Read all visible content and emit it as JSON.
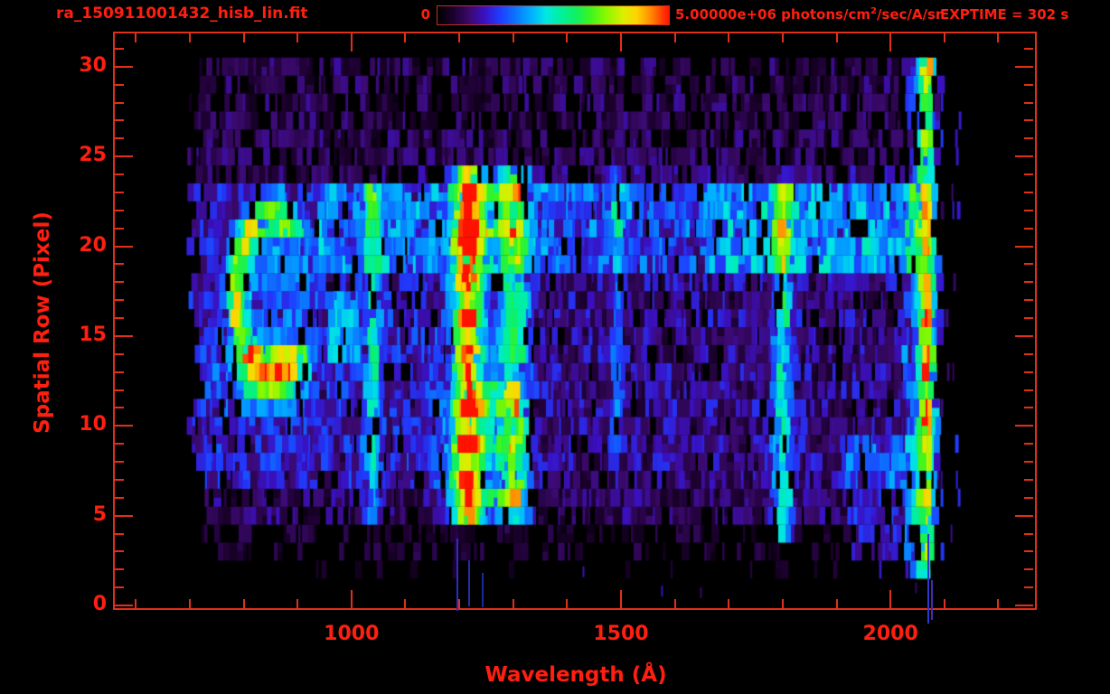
{
  "header": {
    "title": "ra_150911001432_hisb_lin.fit",
    "colorbar_min": "0",
    "colorbar_max_main": "5.00000e+06 photons/cm",
    "colorbar_max_sup": "2",
    "colorbar_max_rest": "/sec/A/sr",
    "exptime": "EXPTIME = 302 s"
  },
  "colors": {
    "background": "#000000",
    "text_red": "#ff1f10",
    "frame_red": "#e1301a"
  },
  "chart_data": {
    "type": "heatmap",
    "title": "ra_150911001432_hisb_lin.fit",
    "xlabel": "Wavelength (Å)",
    "ylabel": "Spatial Row (Pixel)",
    "x_ticks": [
      1000,
      1500,
      2000
    ],
    "x_minor_step": 100,
    "x_minor_range": [
      600,
      2200
    ],
    "y_ticks": [
      0,
      5,
      10,
      15,
      20,
      25,
      30
    ],
    "y_minor_step": 1,
    "y_minor_range": [
      0,
      31
    ],
    "x_range": [
      561,
      2268
    ],
    "y_range": [
      -0.15,
      31.85
    ],
    "intensity_scale": {
      "min": 0,
      "max": 5000000,
      "units": "photons/cm^2/sec/A/sr"
    },
    "exposure_s": 302,
    "data_extent": {
      "wavelength": [
        695,
        2090
      ],
      "rows": [
        2,
        30
      ]
    },
    "colormap_stops": [
      [
        0.0,
        "#000000"
      ],
      [
        0.07,
        "#1d0130"
      ],
      [
        0.14,
        "#3b0a6e"
      ],
      [
        0.2,
        "#3a10c0"
      ],
      [
        0.27,
        "#1f3cff"
      ],
      [
        0.34,
        "#0b77ff"
      ],
      [
        0.41,
        "#00b4ff"
      ],
      [
        0.47,
        "#00e8e0"
      ],
      [
        0.53,
        "#00f0a0"
      ],
      [
        0.6,
        "#10f060"
      ],
      [
        0.66,
        "#3cf51e"
      ],
      [
        0.73,
        "#8cf800"
      ],
      [
        0.8,
        "#d8f000"
      ],
      [
        0.86,
        "#ffd400"
      ],
      [
        0.92,
        "#ff8c00"
      ],
      [
        0.96,
        "#ff4e00"
      ],
      [
        1.0,
        "#ff1200"
      ]
    ],
    "emission_lines": [
      {
        "id": "l1040",
        "wavelength": 1040,
        "sigma": 10,
        "amp": 0.3,
        "rows": [
          5,
          23
        ],
        "profile": "midbright",
        "label": "cyan line ~1040 A"
      },
      {
        "id": "lya",
        "wavelength": 1216,
        "sigma": 16,
        "amp": 0.85,
        "rows": [
          5,
          24
        ],
        "profile": "alternating",
        "label": "Lyman-alpha, orange-red core"
      },
      {
        "id": "lya_wing",
        "wavelength": 1218,
        "sigma": 34,
        "amp": 0.22,
        "rows": [
          5,
          24
        ],
        "profile": "uniform",
        "label": "Lyman-alpha wings"
      },
      {
        "id": "l1302",
        "wavelength": 1302,
        "sigma": 20,
        "amp": 0.42,
        "rows": [
          5,
          24
        ],
        "profile": "uniform",
        "label": "green line ~1300 A"
      },
      {
        "id": "l1493",
        "wavelength": 1493,
        "sigma": 8,
        "amp": 0.17,
        "rows": [
          9,
          24
        ],
        "profile": "uniform",
        "label": "faint line ~1490 A"
      },
      {
        "id": "l1800",
        "wavelength": 1800,
        "sigma": 13,
        "amp": 0.38,
        "rows": [
          4,
          23
        ],
        "profile": "topbright",
        "label": "green line ~1800 A"
      },
      {
        "id": "edge",
        "wavelength": 2067,
        "sigma": 10,
        "amp": 0.85,
        "rows": [
          2,
          30
        ],
        "profile": "edge",
        "label": "red detector-edge column ~2065 A"
      }
    ],
    "features": [
      {
        "type": "region",
        "rows": [
          19,
          23
        ],
        "wl": [
          940,
          2058
        ],
        "boost": 0.13,
        "label": "bright band rows 19-23"
      },
      {
        "type": "region",
        "rows": [
          19,
          23
        ],
        "wl": [
          1650,
          2052
        ],
        "boost": 0.09
      },
      {
        "type": "region",
        "rows": [
          7,
          23
        ],
        "wl": [
          695,
          1160
        ],
        "boost": 0.05
      },
      {
        "type": "region",
        "rows": [
          6,
          11
        ],
        "wl": [
          1160,
          1340
        ],
        "boost": 0.07
      },
      {
        "type": "region",
        "rows": [
          2,
          9
        ],
        "wl": [
          1920,
          2055
        ],
        "boost": 0.12
      },
      {
        "type": "region",
        "rows": [
          2,
          30
        ],
        "wl": [
          2026,
          2058
        ],
        "boost": 0.12
      },
      {
        "type": "region",
        "rows": [
          14,
          17
        ],
        "wl": [
          955,
          1015
        ],
        "boost": 0.18
      },
      {
        "type": "region",
        "rows": [
          24,
          24
        ],
        "wl": [
          940,
          2058
        ],
        "boost": 0.04
      },
      {
        "type": "ring",
        "cx": 852,
        "cy": 17.3,
        "rx": 80,
        "ry": 5.0,
        "width": 0.16,
        "amp": 0.5,
        "opening": "right",
        "label": "C-shaped airglow blob ~850 A rows 12-23"
      },
      {
        "type": "gauss2d",
        "cx": 845,
        "cy": 12.6,
        "sx": 55,
        "sy": 1.1,
        "amp": 0.38
      },
      {
        "type": "gauss2d",
        "cx": 852,
        "cy": 17.3,
        "sx": 55,
        "sy": 2.6,
        "amp": 0.14
      },
      {
        "type": "rows_region",
        "rows": [
          6,
          9,
          11,
          12,
          21,
          23
        ],
        "wl": [
          1216,
          1312
        ],
        "boost": 0.22,
        "label": "bridges between 1216 and 1300 lines"
      }
    ],
    "noise": {
      "base": {
        "2": 0.05,
        "3_4": 0.07,
        "5_6": 0.12,
        "7_23": 0.15,
        "24_30": 0.105
      },
      "gap": {
        "2": 0.85,
        "3_4": 0.55,
        "5_6": 0.16,
        "7_23": 0.1,
        "24_30": 0.3
      },
      "row_start_wl": {
        "2": 740,
        "3_4": 715,
        "5_6": 705,
        "7_23": 690,
        "24_30": 693
      },
      "row_end_wl": 2088
    },
    "overflow_marks": [
      {
        "wavelength": 1196,
        "row_from": 3.7,
        "row_to": -0.3,
        "color": "#2a2cc8"
      },
      {
        "wavelength": 1219,
        "row_from": 2.5,
        "row_to": -0.05,
        "color": "#1f2fa8"
      },
      {
        "wavelength": 1243,
        "row_from": 1.8,
        "row_to": -0.1,
        "color": "#1c2a98"
      },
      {
        "wavelength": 2070,
        "row_from": 4.0,
        "row_to": -1.0,
        "color": "#3038cc"
      },
      {
        "wavelength": 2077,
        "row_from": 1.4,
        "row_to": -0.8,
        "color": "#4a28b0"
      }
    ]
  }
}
